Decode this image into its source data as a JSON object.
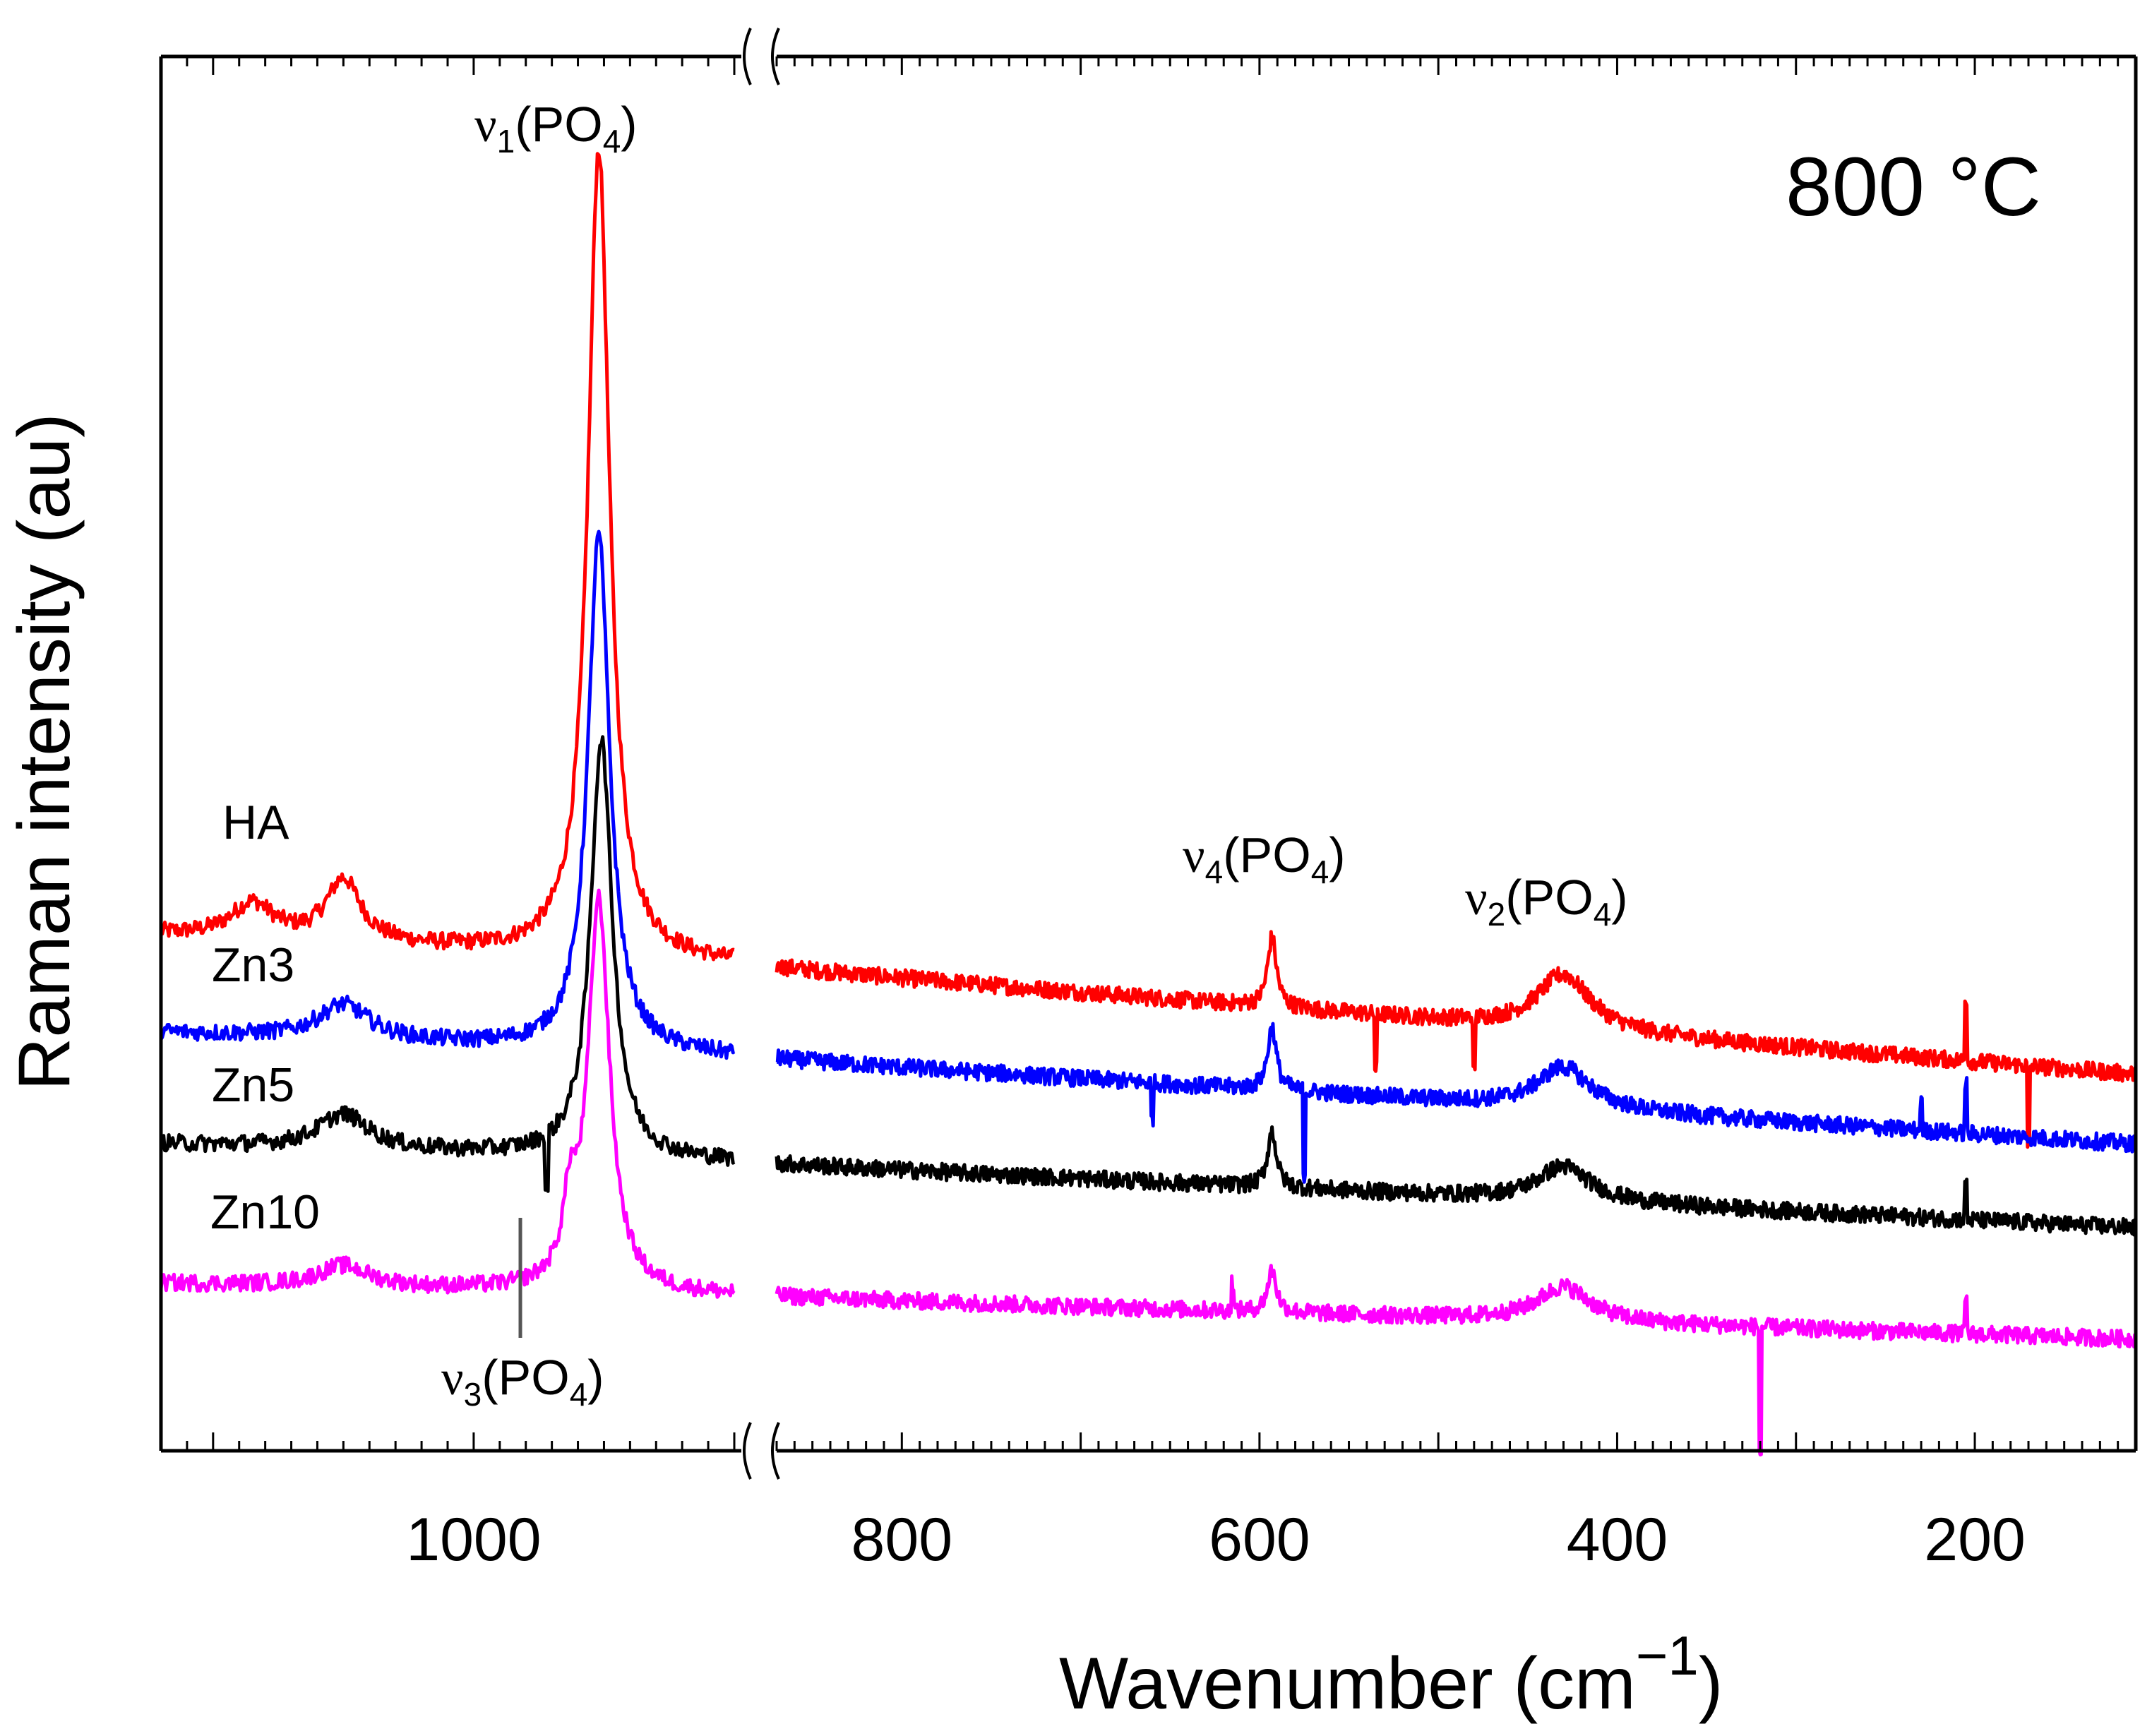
{
  "chart_data": {
    "type": "line",
    "title": "800 °C",
    "xlabel": "Wavenumber (cm−1)",
    "xlabel_main": "Wavenumber (cm",
    "xlabel_sup": "−1",
    "xlabel_close": ")",
    "ylabel": "Raman intensity (au)",
    "x_direction": "descending",
    "axis_break": [
      900,
      870
    ],
    "xlim_left_panel": [
      1120,
      900
    ],
    "xlim_right_panel": [
      870,
      110
    ],
    "ylim": [
      0,
      100
    ],
    "yticks_shown": false,
    "x_ticks_left": [
      "1000"
    ],
    "x_ticks_right": [
      "800",
      "600",
      "400",
      "200"
    ],
    "x_tick_values": [
      1000,
      800,
      600,
      400,
      200
    ],
    "annotations": {
      "v1": {
        "nu": "ν",
        "sub": "1",
        "text": "(PO",
        "sub2": "4",
        "close": ")",
        "x": 952
      },
      "v2": {
        "nu": "ν",
        "sub": "2",
        "text": "(PO",
        "sub2": "4",
        "close": ")",
        "x": 430
      },
      "v3": {
        "nu": "ν",
        "sub": "3",
        "text": "(PO",
        "sub2": "4",
        "close": ")",
        "x": 963
      },
      "v4": {
        "nu": "ν",
        "sub": "4",
        "text": "(PO",
        "sub2": "4",
        "close": ")",
        "x": 593
      }
    },
    "series": [
      {
        "name": "HA",
        "color": "#ff0000",
        "baseline_start": 37,
        "baseline_end": 27,
        "peaks": [
          {
            "x": 952,
            "height": 58,
            "width": 5
          },
          {
            "x": 1085,
            "height": 2.5,
            "width": 10
          },
          {
            "x": 1050,
            "height": 4.5,
            "width": 8
          },
          {
            "x": 593,
            "height": 5,
            "width": 3
          },
          {
            "x": 430,
            "height": 4,
            "width": 18
          }
        ],
        "spikes": [
          {
            "x": 205,
            "h": 4.5
          },
          {
            "x": 535,
            "h": -4
          },
          {
            "x": 480,
            "h": -4
          },
          {
            "x": 170,
            "h": -6
          }
        ]
      },
      {
        "name": "Zn3",
        "color": "#0000ff",
        "baseline_start": 30,
        "baseline_end": 22,
        "peaks": [
          {
            "x": 952,
            "height": 37,
            "width": 5
          },
          {
            "x": 1050,
            "height": 2.5,
            "width": 12
          },
          {
            "x": 593,
            "height": 4.5,
            "width": 3
          },
          {
            "x": 430,
            "height": 3,
            "width": 18
          }
        ],
        "spikes": [
          {
            "x": 205,
            "h": 3.5
          },
          {
            "x": 575,
            "h": -6
          },
          {
            "x": 660,
            "h": -2.5
          },
          {
            "x": 230,
            "h": 2
          }
        ]
      },
      {
        "name": "Zn5",
        "color": "#000000",
        "baseline_start": 22,
        "baseline_end": 16,
        "peaks": [
          {
            "x": 951,
            "height": 30,
            "width": 5
          },
          {
            "x": 1050,
            "height": 2.5,
            "width": 12
          },
          {
            "x": 593,
            "height": 4,
            "width": 3
          },
          {
            "x": 430,
            "height": 2.5,
            "width": 18
          }
        ],
        "spikes": [
          {
            "x": 205,
            "h": 2.5
          },
          {
            "x": 972,
            "h": -4
          }
        ]
      },
      {
        "name": "Zn10",
        "color": "#ff00ff",
        "baseline_start": 12,
        "baseline_end": 8,
        "peaks": [
          {
            "x": 952,
            "height": 28,
            "width": 5
          },
          {
            "x": 963,
            "height": 5,
            "width": 3
          },
          {
            "x": 1050,
            "height": 1.5,
            "width": 12
          },
          {
            "x": 593,
            "height": 3,
            "width": 3
          },
          {
            "x": 430,
            "height": 2.5,
            "width": 18
          }
        ],
        "spikes": [
          {
            "x": 205,
            "h": 2.5
          },
          {
            "x": 320,
            "h": -9
          },
          {
            "x": 615,
            "h": 2
          }
        ]
      }
    ]
  }
}
